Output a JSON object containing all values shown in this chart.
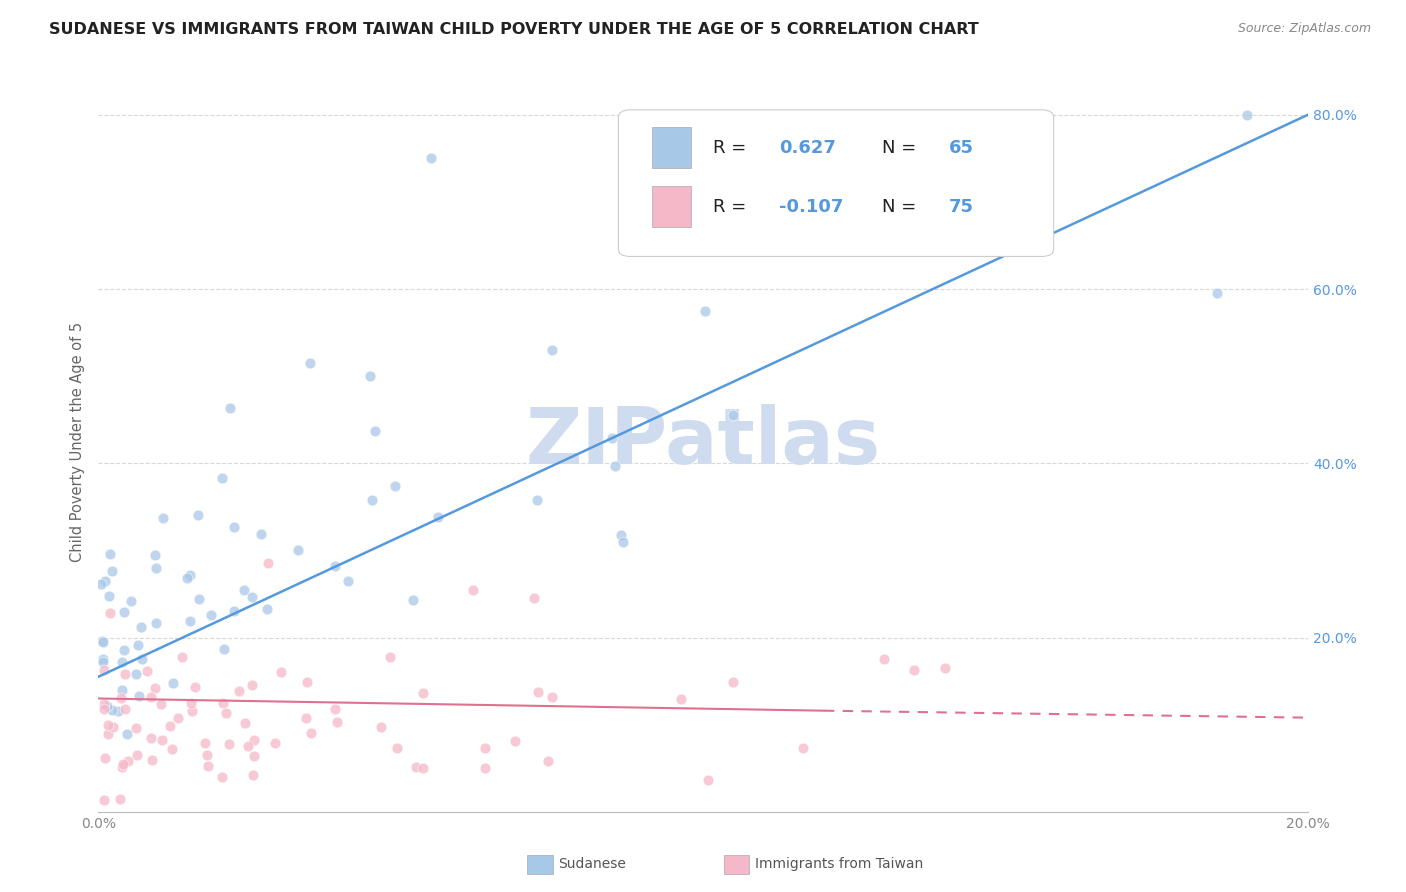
{
  "title": "SUDANESE VS IMMIGRANTS FROM TAIWAN CHILD POVERTY UNDER THE AGE OF 5 CORRELATION CHART",
  "source": "Source: ZipAtlas.com",
  "ylabel": "Child Poverty Under the Age of 5",
  "xlim": [
    0.0,
    0.2
  ],
  "ylim": [
    0.0,
    0.85
  ],
  "background_color": "#ffffff",
  "grid_color": "#d8d8d8",
  "watermark_text": "ZIPatlas",
  "watermark_color": "#cfdcf0",
  "legend_R1": "0.627",
  "legend_N1": "65",
  "legend_R2": "-0.107",
  "legend_N2": "75",
  "blue_scatter_color": "#a8c8e8",
  "pink_scatter_color": "#f5b8c8",
  "blue_line_color": "#5599dd",
  "pink_line_color": "#e07090",
  "right_tick_color": "#5599dd",
  "title_color": "#222222",
  "source_color": "#888888",
  "label_color": "#666666",
  "tick_color": "#888888",
  "legend_text_color": "#222222",
  "legend_value_color": "#5599dd",
  "bottom_legend_color": "#555555"
}
